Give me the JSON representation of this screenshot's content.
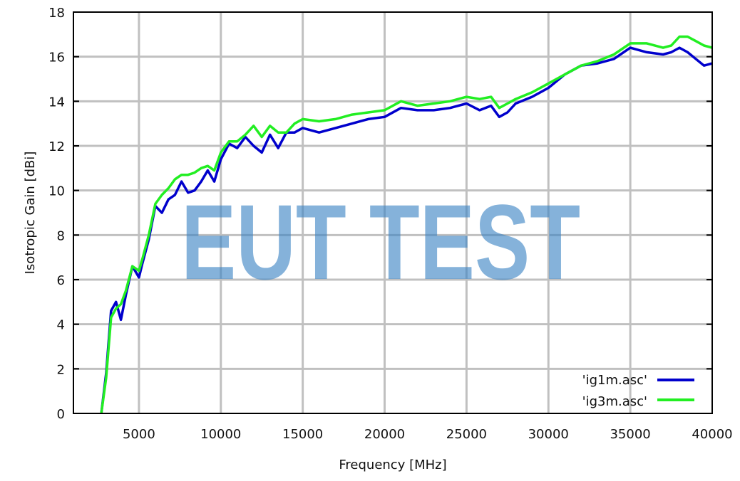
{
  "chart_data": {
    "type": "line",
    "title": "",
    "xlabel": "Frequency [MHz]",
    "ylabel": "Isotropic Gain [dBi]",
    "xlim": [
      1000,
      40000
    ],
    "ylim": [
      0,
      18
    ],
    "grid": true,
    "legend_position": "bottom-right",
    "x_ticks": [
      "5000",
      "10000",
      "15000",
      "20000",
      "25000",
      "30000",
      "35000",
      "40000"
    ],
    "y_ticks": [
      "0",
      "2",
      "4",
      "6",
      "8",
      "10",
      "12",
      "14",
      "16",
      "18"
    ],
    "watermark": "EUT TEST",
    "series": [
      {
        "name": "'ig1m.asc'",
        "color": "#0000cc",
        "x": [
          2700,
          3000,
          3300,
          3600,
          3900,
          4200,
          4600,
          5000,
          5200,
          5600,
          6000,
          6400,
          6800,
          7200,
          7600,
          8000,
          8400,
          8800,
          9200,
          9600,
          10000,
          10500,
          11000,
          11500,
          12000,
          12500,
          13000,
          13500,
          14000,
          14500,
          15000,
          16000,
          17000,
          18000,
          19000,
          20000,
          21000,
          22000,
          23000,
          24000,
          25000,
          25800,
          26500,
          27000,
          27500,
          28000,
          29000,
          30000,
          31000,
          32000,
          33000,
          34000,
          35000,
          36000,
          37000,
          37500,
          38000,
          38500,
          39000,
          39500,
          40000
        ],
        "values": [
          0,
          1.8,
          4.6,
          5.0,
          4.2,
          5.3,
          6.6,
          6.1,
          6.7,
          7.8,
          9.3,
          9.0,
          9.6,
          9.8,
          10.4,
          9.9,
          10.0,
          10.4,
          10.9,
          10.4,
          11.4,
          12.1,
          11.9,
          12.4,
          12.0,
          11.7,
          12.5,
          11.9,
          12.6,
          12.6,
          12.8,
          12.6,
          12.8,
          13.0,
          13.2,
          13.3,
          13.7,
          13.6,
          13.6,
          13.7,
          13.9,
          13.6,
          13.8,
          13.3,
          13.5,
          13.9,
          14.2,
          14.6,
          15.2,
          15.6,
          15.7,
          15.9,
          16.4,
          16.2,
          16.1,
          16.2,
          16.4,
          16.2,
          15.9,
          15.6,
          15.7
        ]
      },
      {
        "name": "'ig3m.asc'",
        "color": "#22ee22",
        "x": [
          2700,
          3000,
          3300,
          3600,
          3900,
          4200,
          4600,
          5000,
          5200,
          5600,
          6000,
          6400,
          6800,
          7200,
          7600,
          8000,
          8400,
          8800,
          9200,
          9600,
          10000,
          10500,
          11000,
          11500,
          12000,
          12500,
          13000,
          13500,
          14000,
          14500,
          15000,
          16000,
          17000,
          18000,
          19000,
          20000,
          21000,
          22000,
          23000,
          24000,
          25000,
          25800,
          26500,
          27000,
          27500,
          28000,
          29000,
          30000,
          31000,
          32000,
          33000,
          34000,
          35000,
          36000,
          37000,
          37500,
          38000,
          38500,
          39000,
          39500,
          40000
        ],
        "values": [
          0,
          1.6,
          4.3,
          4.7,
          4.9,
          5.5,
          6.6,
          6.4,
          6.9,
          8.0,
          9.4,
          9.8,
          10.1,
          10.5,
          10.7,
          10.7,
          10.8,
          11.0,
          11.1,
          10.9,
          11.7,
          12.2,
          12.2,
          12.5,
          12.9,
          12.4,
          12.9,
          12.6,
          12.6,
          13.0,
          13.2,
          13.1,
          13.2,
          13.4,
          13.5,
          13.6,
          14.0,
          13.8,
          13.9,
          14.0,
          14.2,
          14.1,
          14.2,
          13.7,
          13.9,
          14.1,
          14.4,
          14.8,
          15.2,
          15.6,
          15.8,
          16.1,
          16.6,
          16.6,
          16.4,
          16.5,
          16.9,
          16.9,
          16.7,
          16.5,
          16.4
        ]
      }
    ]
  },
  "plot": {
    "ylabel": "Isotropic Gain [dBi]",
    "xlabel": "Frequency [MHz]",
    "watermark": "EUT TEST",
    "legend": [
      {
        "label": "'ig1m.asc'",
        "color": "#0000cc"
      },
      {
        "label": "'ig3m.asc'",
        "color": "#22ee22"
      }
    ]
  }
}
